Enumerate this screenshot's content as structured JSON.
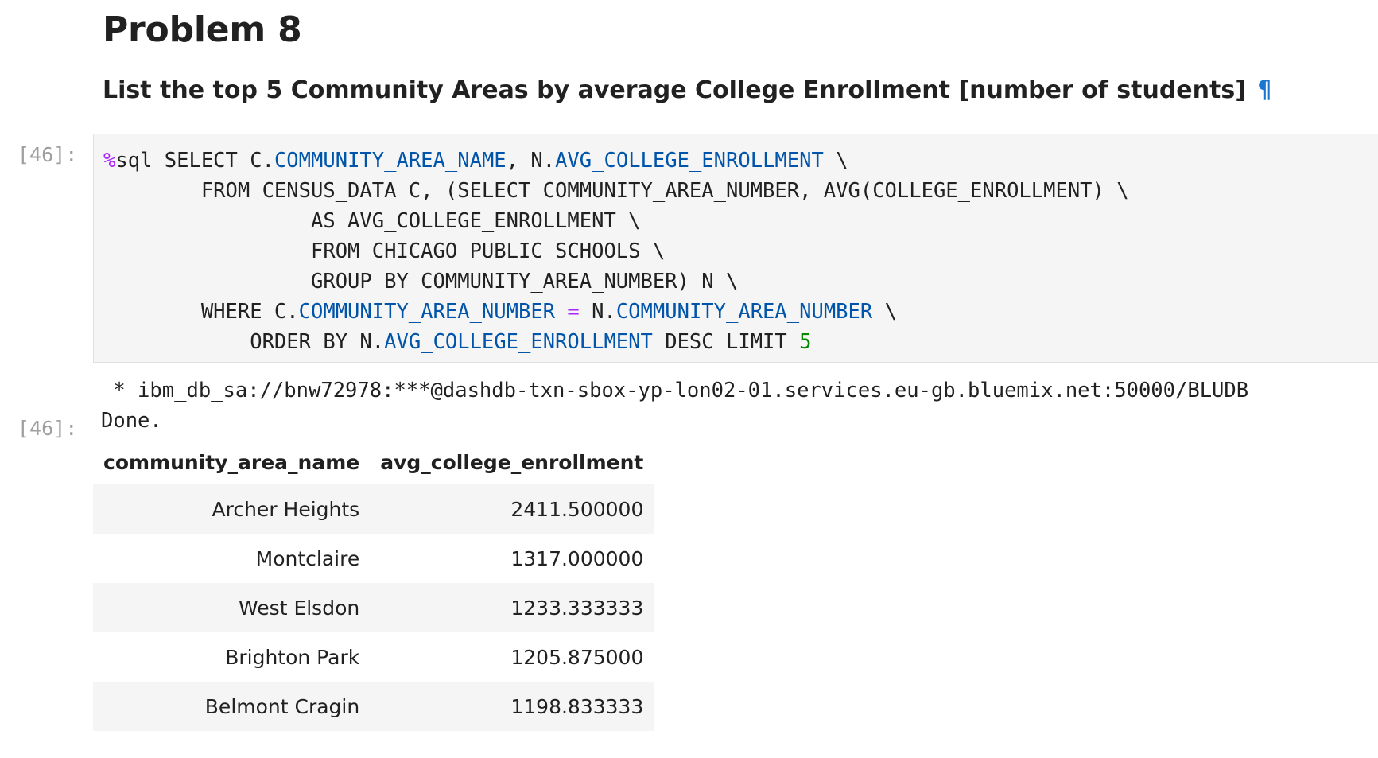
{
  "markdown": {
    "heading": "Problem 8",
    "subheading": "List the top 5 Community Areas by average College Enrollment [number of students]",
    "anchor": "¶"
  },
  "code_cell": {
    "prompt": "[46]:",
    "lines": [
      [
        {
          "t": "%",
          "c": "kw-magic"
        },
        {
          "t": "sql SELECT C."
        },
        {
          "t": "COMMUNITY_AREA_NAME",
          "c": "attr"
        },
        {
          "t": ", N."
        },
        {
          "t": "AVG_COLLEGE_ENROLLMENT",
          "c": "attr"
        },
        {
          "t": " \\"
        }
      ],
      [
        {
          "t": "        FROM CENSUS_DATA C, (SELECT COMMUNITY_AREA_NUMBER, AVG(COLLEGE_ENROLLMENT) \\"
        }
      ],
      [
        {
          "t": "                 AS AVG_COLLEGE_ENROLLMENT \\"
        }
      ],
      [
        {
          "t": "                 FROM CHICAGO_PUBLIC_SCHOOLS \\"
        }
      ],
      [
        {
          "t": "                 GROUP BY COMMUNITY_AREA_NUMBER) N \\"
        }
      ],
      [
        {
          "t": "        WHERE C."
        },
        {
          "t": "COMMUNITY_AREA_NUMBER",
          "c": "attr"
        },
        {
          "t": " "
        },
        {
          "t": "=",
          "c": "op"
        },
        {
          "t": " N."
        },
        {
          "t": "COMMUNITY_AREA_NUMBER",
          "c": "attr"
        },
        {
          "t": " \\"
        }
      ],
      [
        {
          "t": "            ORDER BY N."
        },
        {
          "t": "AVG_COLLEGE_ENROLLMENT",
          "c": "attr"
        },
        {
          "t": " DESC LIMIT "
        },
        {
          "t": "5",
          "c": "num"
        }
      ]
    ]
  },
  "output": {
    "stdout_lines": [
      " * ibm_db_sa://bnw72978:***@dashdb-txn-sbox-yp-lon02-01.services.eu-gb.bluemix.net:50000/BLUDB",
      "Done."
    ],
    "prompt": "[46]:",
    "table": {
      "columns": [
        "community_area_name",
        "avg_college_enrollment"
      ],
      "rows": [
        [
          "Archer Heights",
          "2411.500000"
        ],
        [
          "Montclaire",
          "1317.000000"
        ],
        [
          "West Elsdon",
          "1233.333333"
        ],
        [
          "Brighton Park",
          "1205.875000"
        ],
        [
          "Belmont Cragin",
          "1198.833333"
        ]
      ]
    }
  }
}
